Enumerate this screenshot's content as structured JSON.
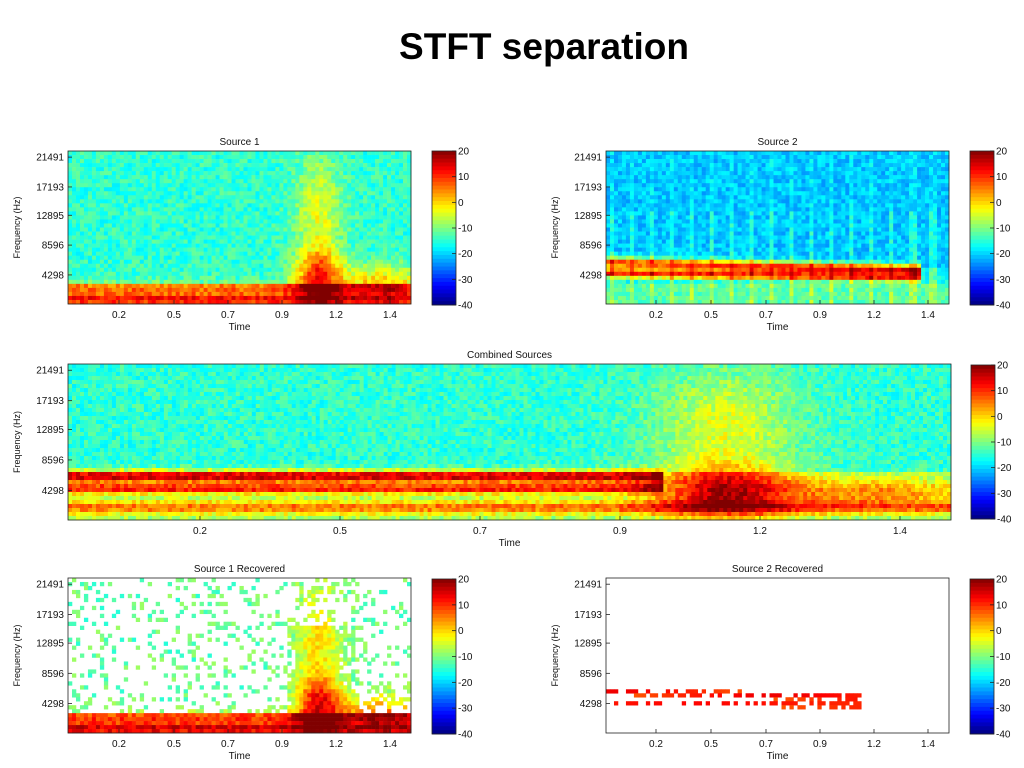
{
  "page": {
    "title": "STFT separation"
  },
  "colors": {
    "colormap": "jet",
    "recovered_background": "#ffffff"
  },
  "chart_data": [
    {
      "id": "source1",
      "type": "heatmap",
      "title": "Source 1",
      "xlabel": "Time",
      "ylabel": "Frequency (Hz)",
      "xticks": [
        "0.2",
        "0.5",
        "0.7",
        "0.9",
        "1.2",
        "1.4"
      ],
      "yticks": [
        "21491",
        "17193",
        "12895",
        "8596",
        "4298"
      ],
      "colorbar_ticks": [
        "20",
        "10",
        "0",
        "-10",
        "-20",
        "-30",
        "-40"
      ],
      "clim": [
        -40,
        20
      ]
    },
    {
      "id": "source2",
      "type": "heatmap",
      "title": "Source 2",
      "xlabel": "Time",
      "ylabel": "Frequency (Hz)",
      "xticks": [
        "0.2",
        "0.5",
        "0.7",
        "0.9",
        "1.2",
        "1.4"
      ],
      "yticks": [
        "21491",
        "17193",
        "12895",
        "8596",
        "4298"
      ],
      "colorbar_ticks": [
        "20",
        "10",
        "0",
        "-10",
        "-20",
        "-30",
        "-40"
      ],
      "clim": [
        -40,
        20
      ]
    },
    {
      "id": "combined",
      "type": "heatmap",
      "title": "Combined Sources",
      "xlabel": "Time",
      "ylabel": "Frequency (Hz)",
      "xticks": [
        "0.2",
        "0.5",
        "0.7",
        "0.9",
        "1.2",
        "1.4"
      ],
      "yticks": [
        "21491",
        "17193",
        "12895",
        "8596",
        "4298"
      ],
      "colorbar_ticks": [
        "20",
        "10",
        "0",
        "-10",
        "-20",
        "-30",
        "-40"
      ],
      "clim": [
        -40,
        20
      ]
    },
    {
      "id": "source1_recovered",
      "type": "heatmap",
      "title": "Source 1 Recovered",
      "xlabel": "Time",
      "ylabel": "Frequency (Hz)",
      "xticks": [
        "0.2",
        "0.5",
        "0.7",
        "0.9",
        "1.2",
        "1.4"
      ],
      "yticks": [
        "21491",
        "17193",
        "12895",
        "8596",
        "4298"
      ],
      "colorbar_ticks": [
        "20",
        "10",
        "0",
        "-10",
        "-20",
        "-30",
        "-40"
      ],
      "clim": [
        -40,
        20
      ]
    },
    {
      "id": "source2_recovered",
      "type": "heatmap",
      "title": "Source 2 Recovered",
      "xlabel": "Time",
      "ylabel": "Frequency (Hz)",
      "xticks": [
        "0.2",
        "0.5",
        "0.7",
        "0.9",
        "1.2",
        "1.4"
      ],
      "yticks": [
        "21491",
        "17193",
        "12895",
        "8596",
        "4298"
      ],
      "colorbar_ticks": [
        "20",
        "10",
        "0",
        "-10",
        "-20",
        "-30",
        "-40"
      ],
      "clim": [
        -40,
        20
      ]
    }
  ]
}
